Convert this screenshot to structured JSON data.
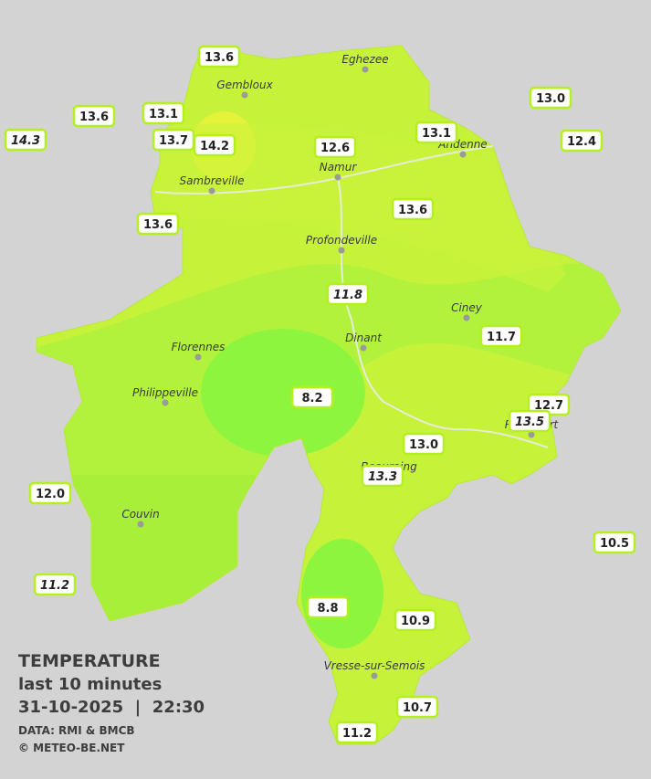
{
  "legend": {
    "title": "TEMPERATURE",
    "subtitle": "last 10 minutes",
    "timestamp": "31-10-2025  |  22:30",
    "source": "DATA: RMI & BMCB",
    "credit": "© METEO-BE.NET"
  },
  "cities": [
    {
      "name": "Eghezee"
    },
    {
      "name": "Gembloux"
    },
    {
      "name": "Andenne"
    },
    {
      "name": "Namur"
    },
    {
      "name": "Sambreville"
    },
    {
      "name": "Profondeville"
    },
    {
      "name": "Ciney"
    },
    {
      "name": "Dinant"
    },
    {
      "name": "Florennes"
    },
    {
      "name": "Philippeville"
    },
    {
      "name": "Rochefort"
    },
    {
      "name": "Beauraing"
    },
    {
      "name": "Couvin"
    },
    {
      "name": "Vresse-sur-Semois"
    }
  ],
  "stations": [
    {
      "temp": "13.6"
    },
    {
      "temp": "13.6"
    },
    {
      "temp": "13.1"
    },
    {
      "temp": "14.3"
    },
    {
      "temp": "13.7"
    },
    {
      "temp": "14.2"
    },
    {
      "temp": "12.6"
    },
    {
      "temp": "13.1"
    },
    {
      "temp": "13.0"
    },
    {
      "temp": "12.4"
    },
    {
      "temp": "13.6"
    },
    {
      "temp": "13.6"
    },
    {
      "temp": "11.8"
    },
    {
      "temp": "11.7"
    },
    {
      "temp": "8.2"
    },
    {
      "temp": "12.7"
    },
    {
      "temp": "13.5"
    },
    {
      "temp": "13.0"
    },
    {
      "temp": "13.3"
    },
    {
      "temp": "12.0"
    },
    {
      "temp": "10.5"
    },
    {
      "temp": "11.2"
    },
    {
      "temp": "8.8"
    },
    {
      "temp": "10.9"
    },
    {
      "temp": "10.7"
    },
    {
      "temp": "11.2"
    }
  ]
}
